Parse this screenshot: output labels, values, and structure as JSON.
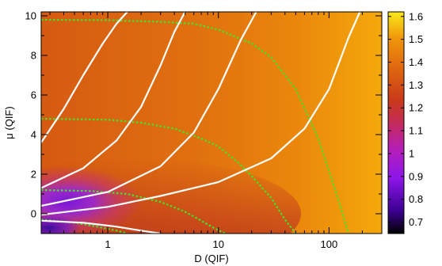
{
  "chart_data": {
    "type": "heatmap",
    "title": "",
    "xlabel": "D (QIF)",
    "ylabel": "μ (QIF)",
    "x_scale": "log",
    "xlim": [
      0.25,
      300
    ],
    "ylim": [
      -1,
      10.2
    ],
    "x_ticks": [
      {
        "value": 1,
        "label": "1"
      },
      {
        "value": 10,
        "label": "10"
      },
      {
        "value": 100,
        "label": "100"
      }
    ],
    "y_ticks": [
      {
        "value": 0,
        "label": "0"
      },
      {
        "value": 2,
        "label": "2"
      },
      {
        "value": 4,
        "label": "4"
      },
      {
        "value": 6,
        "label": "6"
      },
      {
        "value": 8,
        "label": "8"
      },
      {
        "value": 10,
        "label": "10"
      }
    ],
    "colorbar": {
      "min": 0.65,
      "max": 1.62,
      "ticks": [
        {
          "value": 0.7,
          "label": "0.7"
        },
        {
          "value": 0.8,
          "label": "0.8"
        },
        {
          "value": 0.9,
          "label": "0.9"
        },
        {
          "value": 1.0,
          "label": "1"
        },
        {
          "value": 1.1,
          "label": "1.1"
        },
        {
          "value": 1.2,
          "label": "1.2"
        },
        {
          "value": 1.3,
          "label": "1.3"
        },
        {
          "value": 1.4,
          "label": "1.4"
        },
        {
          "value": 1.5,
          "label": "1.5"
        },
        {
          "value": 1.6,
          "label": "1.6"
        }
      ],
      "palette": "gnuplot"
    },
    "white_curves": [
      {
        "x": [
          0.25,
          0.4,
          0.6,
          0.9,
          1.2,
          1.5
        ],
        "y": [
          3.6,
          5.3,
          7.0,
          8.6,
          9.6,
          10.2
        ]
      },
      {
        "x": [
          0.25,
          0.6,
          1.2,
          2.0,
          3.0,
          4.0,
          5.0
        ],
        "y": [
          1.3,
          2.3,
          3.7,
          5.4,
          7.5,
          9.2,
          10.2
        ]
      },
      {
        "x": [
          0.25,
          1.0,
          3.0,
          6.0,
          10.0,
          16.0,
          22.0
        ],
        "y": [
          0.4,
          1.1,
          2.4,
          4.1,
          6.3,
          8.8,
          10.2
        ]
      },
      {
        "x": [
          0.25,
          1.0,
          3.0,
          10.0,
          30.0,
          60.0,
          100.0,
          150.0,
          190.0
        ],
        "y": [
          -0.05,
          0.35,
          0.9,
          1.6,
          2.8,
          4.3,
          6.3,
          8.9,
          10.2
        ]
      },
      {
        "x": [
          0.25,
          0.6,
          1.2,
          2.0,
          3.0
        ],
        "y": [
          -0.35,
          -0.45,
          -0.65,
          -0.85,
          -1.0
        ]
      }
    ],
    "green_curves": [
      {
        "x": [
          0.25,
          1.0,
          3.0,
          6.0,
          10.0,
          20.0,
          30.0,
          50.0,
          80.0,
          120.0,
          150.0
        ],
        "y": [
          9.8,
          9.78,
          9.7,
          9.6,
          9.3,
          8.6,
          7.9,
          6.3,
          3.8,
          0.8,
          -1.0
        ]
      },
      {
        "x": [
          0.25,
          1.0,
          2.0,
          4.0,
          7.0,
          10.0,
          15.0,
          20.0,
          30.0,
          40.0,
          50.0
        ],
        "y": [
          4.8,
          4.75,
          4.6,
          4.3,
          3.8,
          3.4,
          2.6,
          1.9,
          0.8,
          -0.3,
          -1.0
        ]
      },
      {
        "x": [
          0.25,
          0.7,
          1.5,
          3.0,
          5.0,
          7.0,
          9.0,
          11.0,
          12.0
        ],
        "y": [
          1.2,
          1.15,
          1.0,
          0.6,
          0.1,
          -0.35,
          -0.7,
          -0.95,
          -1.0
        ]
      },
      {
        "x": [
          0.25,
          0.5,
          0.8,
          1.2,
          1.5
        ],
        "y": [
          -0.3,
          -0.45,
          -0.65,
          -0.85,
          -1.0
        ]
      }
    ]
  }
}
